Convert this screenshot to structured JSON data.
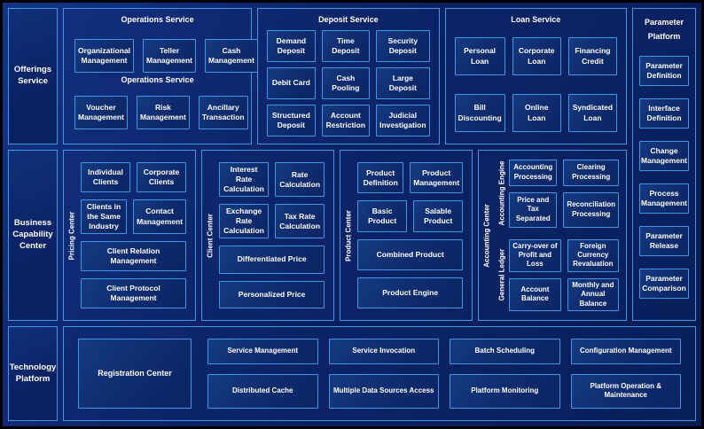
{
  "palette": {
    "background_navy": "#0b2264",
    "border_blue": "#3e97e2",
    "box_fill": "#0e2c6e",
    "text": "#ffffff"
  },
  "offerings_row": {
    "rail_label": "Offerings Service",
    "operations": {
      "title": "Operations Service",
      "mid_title": "Operations Service",
      "row1": [
        "Organizational Management",
        "Teller Management",
        "Cash Management"
      ],
      "row2": [
        "Voucher Management",
        "Risk Management",
        "Ancillary Transaction"
      ]
    },
    "deposit": {
      "title": "Deposit Service",
      "boxes": [
        "Demand Deposit",
        "Time Deposit",
        "Security Deposit",
        "Debit Card",
        "Cash Pooling",
        "Large Deposit",
        "Structured Deposit",
        "Account Restriction",
        "Judicial Investigation"
      ]
    },
    "loan": {
      "title": "Loan Service",
      "boxes": [
        "Personal Loan",
        "Corporate Loan",
        "Financing Credit",
        "Bill Discounting",
        "Online Loan",
        "Syndicated Loan"
      ]
    }
  },
  "business_row": {
    "rail_label": "Business Capability Center",
    "pricing_center": {
      "label": "Pricing Center",
      "small_boxes": [
        "Individual Clients",
        "Corporate Clients",
        "Clients in the Same Industry",
        "Contact Management"
      ],
      "wide_boxes": [
        "Client Relation Management",
        "Client Protocol Management"
      ]
    },
    "client_center": {
      "label": "Client Center",
      "small_boxes": [
        "Interest Rate Calculation",
        "Rate Calculation",
        "Exchange Rate Calculation",
        "Tax Rate Calculation"
      ],
      "wide_boxes": [
        "Differentiated Price",
        "Personalized Price"
      ]
    },
    "product_center": {
      "label": "Product Center",
      "small_boxes": [
        "Product Definition",
        "Product Management",
        "Basic Product",
        "Salable Product"
      ],
      "wide_boxes": [
        "Combined Product",
        "Product Engine"
      ]
    },
    "accounting_center": {
      "label": "Accounting Center",
      "groups": [
        {
          "label": "Accounting Engine",
          "boxes": [
            "Accounting Processing",
            "Clearing Processing",
            "Price and Tax Separated",
            "Reconciliation Processing"
          ]
        },
        {
          "label": "General Ledger",
          "boxes": [
            "Carry-over of Profit and Loss",
            "Foreign Currency Revaluation",
            "Account Balance",
            "Monthly and Annual Balance"
          ]
        }
      ]
    }
  },
  "parameter_platform": {
    "title": "Parameter Platform",
    "boxes": [
      "Parameter Definition",
      "Interface Definition",
      "Change Management",
      "Process Management",
      "Parameter Release",
      "Parameter Comparison"
    ]
  },
  "technology_row": {
    "rail_label": "Technology Platform",
    "registration": "Registration Center",
    "top_row": [
      "Service Management",
      "Service Invocation",
      "Batch Scheduling",
      "Configuration Management"
    ],
    "bottom_row": [
      "Distributed Cache",
      "Multiple Data Sources Access",
      "Platform Monitoring",
      "Platform Operation & Maintenance"
    ]
  }
}
